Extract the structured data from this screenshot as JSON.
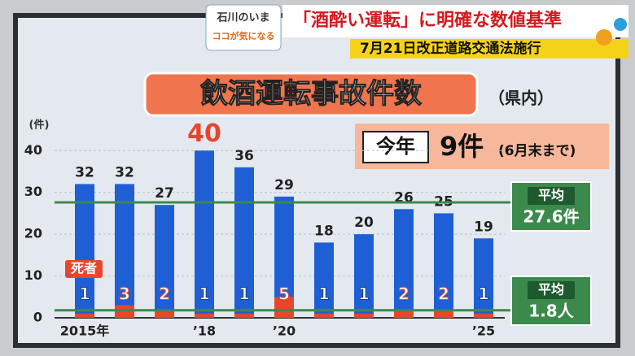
{
  "header": {
    "program": "石川のいま",
    "corner": "ココが気になる",
    "headline": "「酒酔い運転」に明確な数値基準",
    "subheadline": "7月21日改正道路交通法施行"
  },
  "chart_data": {
    "type": "bar",
    "bar_mode": "overlay",
    "title": "飲酒運転事故件数",
    "subtitle": "（県内）",
    "y_label": "(件)",
    "categories": [
      "2015年",
      null,
      null,
      "’18",
      null,
      "’20",
      null,
      null,
      null,
      null,
      "’25"
    ],
    "series": [
      {
        "color": "#1f5fd6",
        "values": [
          32,
          32,
          27,
          40,
          36,
          29,
          18,
          20,
          26,
          25,
          19
        ]
      },
      {
        "name": "死者",
        "color": "#e8452c",
        "values": [
          1,
          3,
          2,
          1,
          1,
          5,
          1,
          1,
          2,
          2,
          1
        ]
      }
    ],
    "highlight": {
      "index": 3,
      "color": "#e8452c"
    },
    "ylim": [
      0,
      42
    ],
    "yticks": [
      0,
      10,
      20,
      30,
      40
    ],
    "grid": true,
    "reference_lines": [
      {
        "label": "平均",
        "value": 27.6,
        "value_label": "27.6件",
        "color": "#3b8a4c"
      },
      {
        "label": "平均",
        "value": 1.8,
        "value_label": "1.8人",
        "color": "#3b8a4c"
      }
    ],
    "callout": {
      "label": "今年",
      "value": "9件",
      "note": "(6月末まで)"
    }
  }
}
